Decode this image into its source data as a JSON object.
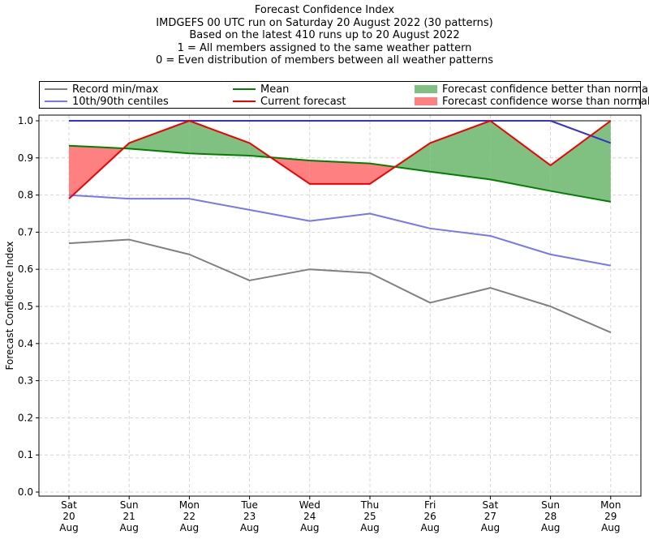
{
  "chart_data": {
    "type": "line",
    "title": [
      "Forecast Confidence Index",
      "IMDGEFS 00 UTC run on Saturday 20 August 2022 (30 patterns)",
      "Based on the latest 410 runs up to 20 August 2022",
      "1 = All members assigned to the same weather pattern",
      "0 = Even distribution of members between all weather patterns"
    ],
    "ylabel": "Forecast Confidence Index",
    "xlabel": "",
    "ylim": [
      0,
      1.0
    ],
    "yticks": [
      "0.0",
      "0.1",
      "0.2",
      "0.3",
      "0.4",
      "0.5",
      "0.6",
      "0.7",
      "0.8",
      "0.9",
      "1.0"
    ],
    "categories": [
      [
        "Sat",
        "20",
        "Aug"
      ],
      [
        "Sun",
        "21",
        "Aug"
      ],
      [
        "Mon",
        "22",
        "Aug"
      ],
      [
        "Tue",
        "23",
        "Aug"
      ],
      [
        "Wed",
        "24",
        "Aug"
      ],
      [
        "Thu",
        "25",
        "Aug"
      ],
      [
        "Fri",
        "26",
        "Aug"
      ],
      [
        "Sat",
        "27",
        "Aug"
      ],
      [
        "Sun",
        "28",
        "Aug"
      ],
      [
        "Mon",
        "29",
        "Aug"
      ]
    ],
    "grid": true,
    "legend_position": "top",
    "series": [
      {
        "name": "Record min/max",
        "kind": "record_min",
        "color": "#808080",
        "values": [
          0.67,
          0.68,
          0.64,
          0.57,
          0.6,
          0.59,
          0.51,
          0.55,
          0.5,
          0.43
        ]
      },
      {
        "name": "",
        "kind": "record_max",
        "color": "#808080",
        "values": [
          1.0,
          1.0,
          1.0,
          1.0,
          1.0,
          1.0,
          1.0,
          1.0,
          1.0,
          1.0
        ]
      },
      {
        "name": "10th/90th centiles",
        "kind": "p10",
        "color": "#7777ee",
        "values": [
          0.8,
          0.79,
          0.79,
          0.76,
          0.73,
          0.75,
          0.71,
          0.69,
          0.64,
          0.61
        ]
      },
      {
        "name": "",
        "kind": "p90",
        "color": "#3333cc",
        "values": [
          1.0,
          1.0,
          1.0,
          1.0,
          1.0,
          1.0,
          1.0,
          1.0,
          1.0,
          0.94
        ]
      },
      {
        "name": "Mean",
        "kind": "mean",
        "color": "#008000",
        "values": [
          0.933,
          0.925,
          0.912,
          0.906,
          0.893,
          0.885,
          0.863,
          0.842,
          0.811,
          0.782
        ]
      },
      {
        "name": "Current forecast",
        "kind": "current",
        "color": "#ee0000",
        "values": [
          0.79,
          0.94,
          1.0,
          0.94,
          0.83,
          0.83,
          0.94,
          1.0,
          0.88,
          1.0
        ]
      }
    ],
    "fills": [
      {
        "name": "Forecast confidence better than normal",
        "color": "#80c080"
      },
      {
        "name": "Forecast confidence worse than normal",
        "color": "#ff8080"
      }
    ]
  }
}
